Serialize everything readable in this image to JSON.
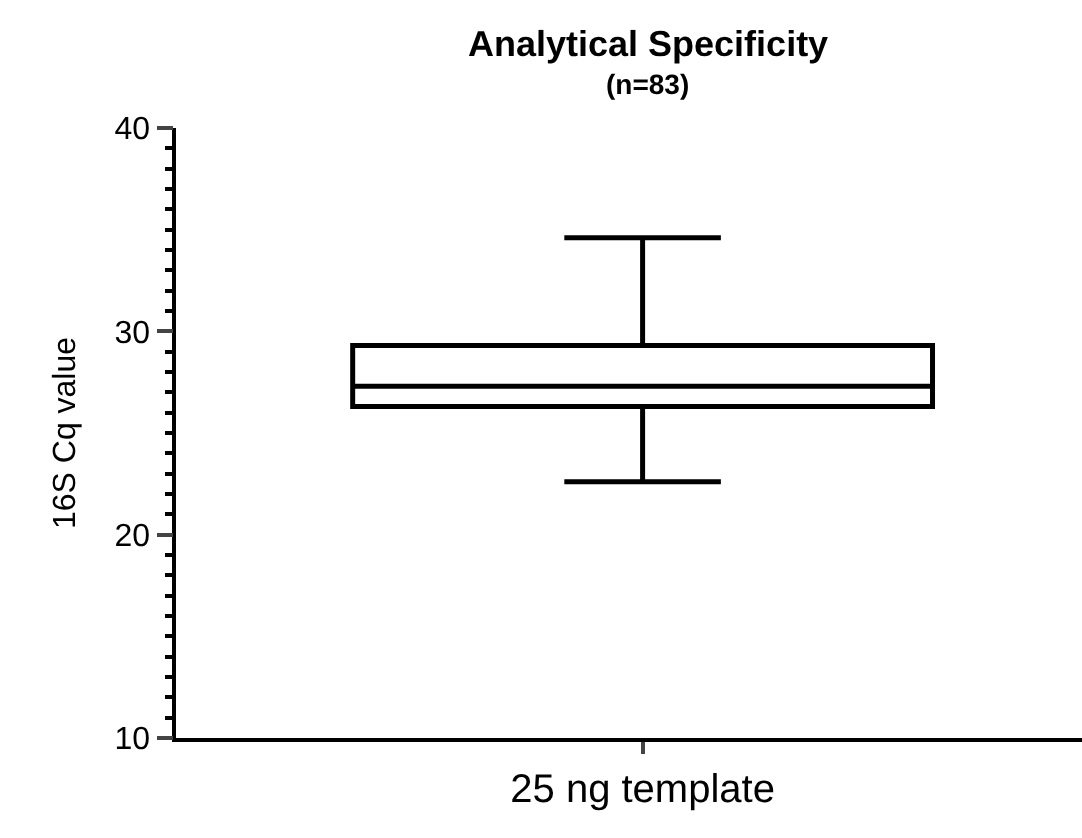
{
  "chart_data": {
    "type": "box",
    "title": "Analytical Specificity",
    "subtitle": "(n=83)",
    "ylabel": "16S Cq value",
    "categories": [
      "25 ng template"
    ],
    "boxes": [
      {
        "low": 22.6,
        "q1": 26.3,
        "median": 27.3,
        "q3": 29.3,
        "high": 34.6
      }
    ],
    "color": "#000000",
    "ylim": [
      10,
      40
    ],
    "yticks": [
      10,
      20,
      30,
      40
    ]
  }
}
